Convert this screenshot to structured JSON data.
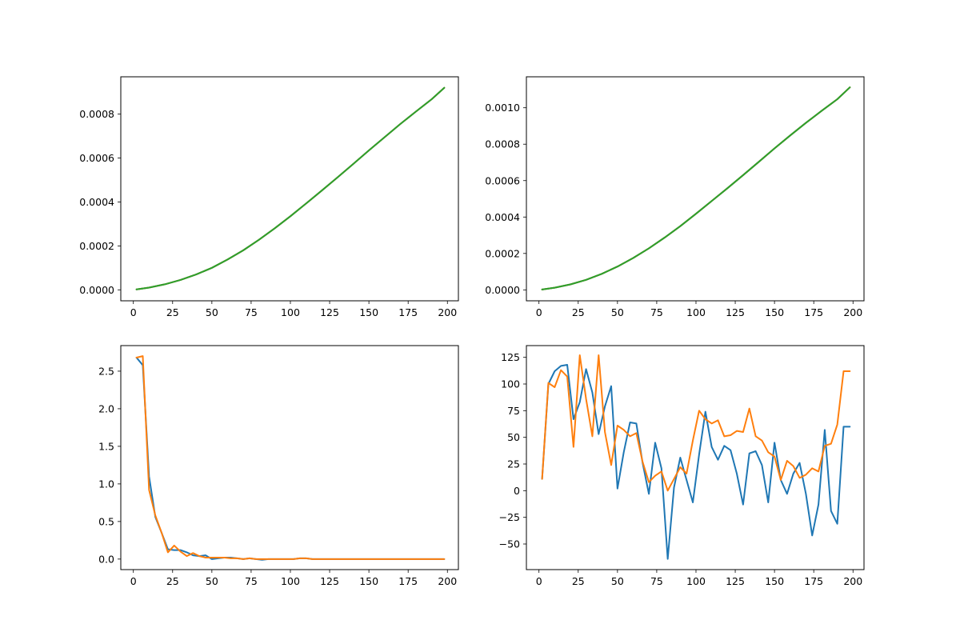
{
  "chart_data": [
    {
      "type": "line",
      "title": "",
      "xlabel": "",
      "ylabel": "",
      "xlim": [
        -8,
        207
      ],
      "ylim": [
        -5e-05,
        0.00097
      ],
      "x_ticks": [
        0,
        25,
        50,
        75,
        100,
        125,
        150,
        175,
        200
      ],
      "x_tick_labels": [
        "0",
        "25",
        "50",
        "75",
        "100",
        "125",
        "150",
        "175",
        "200"
      ],
      "y_ticks": [
        0,
        0.0002,
        0.0004,
        0.0006,
        0.0008
      ],
      "y_tick_labels": [
        "0.0000",
        "0.0002",
        "0.0004",
        "0.0006",
        "0.0008"
      ],
      "grid": false,
      "x": [
        2,
        10,
        20,
        30,
        40,
        50,
        60,
        70,
        80,
        90,
        100,
        110,
        120,
        130,
        140,
        150,
        160,
        170,
        180,
        190,
        198
      ],
      "series": [
        {
          "color": "#1f77b4",
          "values": [
            2e-06,
            1e-05,
            2.5e-05,
            4.5e-05,
            7e-05,
            0.0001,
            0.000138,
            0.00018,
            0.000228,
            0.00028,
            0.000335,
            0.000393,
            0.000452,
            0.000512,
            0.000573,
            0.000635,
            0.000695,
            0.000755,
            0.000812,
            0.000868,
            0.00092
          ]
        },
        {
          "color": "#ff7f0e",
          "values": [
            2e-06,
            1e-05,
            2.5e-05,
            4.5e-05,
            7e-05,
            0.0001,
            0.000138,
            0.00018,
            0.000228,
            0.00028,
            0.000335,
            0.000393,
            0.000452,
            0.000512,
            0.000573,
            0.000635,
            0.000695,
            0.000755,
            0.000812,
            0.000868,
            0.00092
          ]
        },
        {
          "color": "#2ca02c",
          "values": [
            2e-06,
            1e-05,
            2.5e-05,
            4.5e-05,
            7e-05,
            0.0001,
            0.000138,
            0.00018,
            0.000228,
            0.00028,
            0.000335,
            0.000393,
            0.000452,
            0.000512,
            0.000573,
            0.000635,
            0.000695,
            0.000755,
            0.000812,
            0.000868,
            0.00092
          ]
        }
      ]
    },
    {
      "type": "line",
      "title": "",
      "xlabel": "",
      "ylabel": "",
      "xlim": [
        -8,
        207
      ],
      "ylim": [
        -6e-05,
        0.00117
      ],
      "x_ticks": [
        0,
        25,
        50,
        75,
        100,
        125,
        150,
        175,
        200
      ],
      "x_tick_labels": [
        "0",
        "25",
        "50",
        "75",
        "100",
        "125",
        "150",
        "175",
        "200"
      ],
      "y_ticks": [
        0,
        0.0002,
        0.0004,
        0.0006,
        0.0008,
        0.001
      ],
      "y_tick_labels": [
        "0.0000",
        "0.0002",
        "0.0004",
        "0.0006",
        "0.0008",
        "0.0010"
      ],
      "grid": false,
      "x": [
        2,
        10,
        20,
        30,
        40,
        50,
        60,
        70,
        80,
        90,
        100,
        110,
        120,
        130,
        140,
        150,
        160,
        170,
        180,
        190,
        198
      ],
      "series": [
        {
          "color": "#1f77b4",
          "values": [
            2e-06,
            1.2e-05,
            3e-05,
            5.5e-05,
            8.8e-05,
            0.000128,
            0.000175,
            0.000228,
            0.000287,
            0.00035,
            0.000418,
            0.000488,
            0.000558,
            0.00063,
            0.000703,
            0.000777,
            0.000848,
            0.000917,
            0.000983,
            0.001047,
            0.001112
          ]
        },
        {
          "color": "#ff7f0e",
          "values": [
            2e-06,
            1.2e-05,
            3e-05,
            5.5e-05,
            8.8e-05,
            0.000128,
            0.000175,
            0.000228,
            0.000287,
            0.00035,
            0.000418,
            0.000488,
            0.000558,
            0.00063,
            0.000703,
            0.000777,
            0.000848,
            0.000917,
            0.000983,
            0.001047,
            0.001112
          ]
        },
        {
          "color": "#2ca02c",
          "values": [
            2e-06,
            1.2e-05,
            3e-05,
            5.5e-05,
            8.8e-05,
            0.000128,
            0.000175,
            0.000228,
            0.000287,
            0.00035,
            0.000418,
            0.000488,
            0.000558,
            0.00063,
            0.000703,
            0.000777,
            0.000848,
            0.000917,
            0.000983,
            0.001047,
            0.001112
          ]
        }
      ]
    },
    {
      "type": "line",
      "title": "",
      "xlabel": "",
      "ylabel": "",
      "xlim": [
        -8,
        207
      ],
      "ylim": [
        -0.14,
        2.84
      ],
      "x_ticks": [
        0,
        25,
        50,
        75,
        100,
        125,
        150,
        175,
        200
      ],
      "x_tick_labels": [
        "0",
        "25",
        "50",
        "75",
        "100",
        "125",
        "150",
        "175",
        "200"
      ],
      "y_ticks": [
        0,
        0.5,
        1.0,
        1.5,
        2.0,
        2.5
      ],
      "y_tick_labels": [
        "0.0",
        "0.5",
        "1.0",
        "1.5",
        "2.0",
        "2.5"
      ],
      "grid": false,
      "x": [
        2,
        6,
        10,
        14,
        18,
        22,
        26,
        30,
        34,
        38,
        42,
        46,
        50,
        54,
        58,
        62,
        66,
        70,
        74,
        78,
        82,
        86,
        90,
        94,
        98,
        102,
        106,
        110,
        114,
        118,
        122,
        126,
        130,
        134,
        138,
        142,
        146,
        150,
        154,
        158,
        162,
        166,
        170,
        174,
        178,
        182,
        186,
        190,
        194,
        198
      ],
      "series": [
        {
          "color": "#1f77b4",
          "values": [
            2.68,
            2.58,
            1.1,
            0.56,
            0.35,
            0.13,
            0.12,
            0.12,
            0.09,
            0.05,
            0.04,
            0.05,
            0.0,
            0.01,
            0.02,
            0.02,
            0.01,
            0.0,
            0.01,
            0.0,
            -0.01,
            0.0,
            0.0,
            0.0,
            0.0,
            0.0,
            0.01,
            0.01,
            0.0,
            0.0,
            0.0,
            0.0,
            0.0,
            0.0,
            0.0,
            0.0,
            0.0,
            0.0,
            0.0,
            0.0,
            0.0,
            0.0,
            0.0,
            0.0,
            0.0,
            0.0,
            0.0,
            0.0,
            0.0,
            0.0
          ]
        },
        {
          "color": "#ff7f0e",
          "values": [
            2.68,
            2.7,
            0.92,
            0.58,
            0.35,
            0.09,
            0.18,
            0.1,
            0.04,
            0.08,
            0.04,
            0.02,
            0.02,
            0.02,
            0.02,
            0.01,
            0.01,
            0.0,
            0.01,
            0.0,
            0.0,
            0.0,
            0.0,
            0.0,
            0.0,
            0.0,
            0.01,
            0.01,
            0.0,
            0.0,
            0.0,
            0.0,
            0.0,
            0.0,
            0.0,
            0.0,
            0.0,
            0.0,
            0.0,
            0.0,
            0.0,
            0.0,
            0.0,
            0.0,
            0.0,
            0.0,
            0.0,
            0.0,
            0.0,
            0.0
          ]
        }
      ]
    },
    {
      "type": "line",
      "title": "",
      "xlabel": "",
      "ylabel": "",
      "xlim": [
        -8,
        207
      ],
      "ylim": [
        -74,
        136
      ],
      "x_ticks": [
        0,
        25,
        50,
        75,
        100,
        125,
        150,
        175,
        200
      ],
      "x_tick_labels": [
        "0",
        "25",
        "50",
        "75",
        "100",
        "125",
        "150",
        "175",
        "200"
      ],
      "y_ticks": [
        -50,
        -25,
        0,
        25,
        50,
        75,
        100,
        125
      ],
      "y_tick_labels": [
        "−50",
        "−25",
        "0",
        "25",
        "50",
        "75",
        "100",
        "125"
      ],
      "grid": false,
      "x": [
        2,
        6,
        10,
        14,
        18,
        22,
        26,
        30,
        34,
        38,
        42,
        46,
        50,
        54,
        58,
        62,
        66,
        70,
        74,
        78,
        82,
        86,
        90,
        94,
        98,
        102,
        106,
        110,
        114,
        118,
        122,
        126,
        130,
        134,
        138,
        142,
        146,
        150,
        154,
        158,
        162,
        166,
        170,
        174,
        178,
        182,
        186,
        190,
        194,
        198
      ],
      "series": [
        {
          "color": "#1f77b4",
          "values": [
            11,
            100,
            112,
            117,
            118,
            67,
            83,
            114,
            92,
            53,
            79,
            98,
            2,
            36,
            64,
            63,
            26,
            -3,
            45,
            21,
            -64,
            3,
            31,
            10,
            -11,
            34,
            74,
            41,
            29,
            42,
            38,
            16,
            -13,
            35,
            37,
            24,
            -11,
            45,
            10,
            -3,
            16,
            26,
            -3,
            -42,
            -13,
            57,
            -19,
            -31,
            60,
            60
          ]
        },
        {
          "color": "#ff7f0e",
          "values": [
            11,
            101,
            97,
            113,
            107,
            41,
            127,
            86,
            51,
            127,
            55,
            24,
            61,
            57,
            51,
            54,
            27,
            8,
            14,
            18,
            0,
            11,
            22,
            16,
            47,
            75,
            67,
            63,
            66,
            51,
            52,
            56,
            55,
            77,
            51,
            47,
            36,
            32,
            10,
            28,
            23,
            12,
            15,
            21,
            18,
            42,
            44,
            62,
            112,
            112
          ]
        }
      ]
    }
  ]
}
